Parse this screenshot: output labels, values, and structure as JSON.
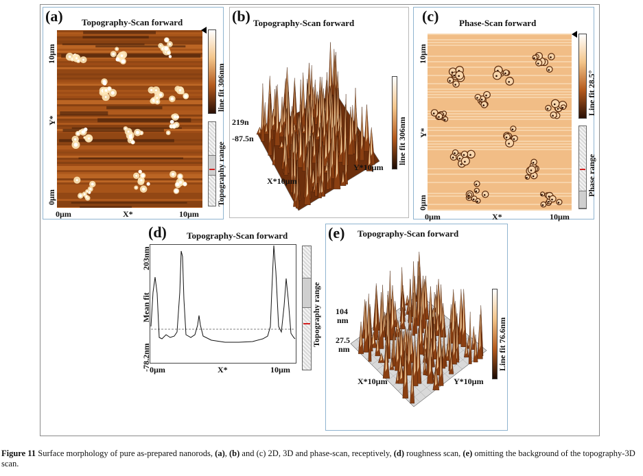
{
  "panels": {
    "a": {
      "label": "(a)",
      "title": "Topography-Scan forward",
      "y_top": "10µm",
      "y_axis": "Y*",
      "y_bottom": "0µm",
      "x_left": "0µm",
      "x_axis": "X*",
      "x_right": "10µm",
      "colorbar_label": "line fit 306nm",
      "range_label": "Topography range"
    },
    "b": {
      "label": "(b)",
      "title": "Topography-Scan forward",
      "z_top": "219n",
      "z_bottom": "-87.5n",
      "x_axis": "X*10µm",
      "y_axis": "Y*10µm",
      "colorbar_label": "line fit 306nm"
    },
    "c": {
      "label": "(c)",
      "title": "Phase-Scan forward",
      "y_top": "10µm",
      "y_axis": "Y*",
      "y_bottom": "0µm",
      "x_left": "0µm",
      "x_axis": "X*",
      "x_right": "10µm",
      "colorbar_label": "Line fit 28.5°",
      "range_label": "Phase range"
    },
    "d": {
      "label": "(d)",
      "title": "Topography-Scan forward",
      "y_top": "203nm",
      "y_axis": "Mean fit",
      "y_bottom": "-78.2nm",
      "x_left": "0µm",
      "x_axis": "X*",
      "x_right": "10µm",
      "range_label": "Topography range"
    },
    "e": {
      "label": "(e)",
      "title": "Topography-Scan forward",
      "z_top": "104",
      "z_top_unit": "nm",
      "z_bottom": "27.5",
      "z_bottom_unit": "nm",
      "x_axis": "X*10µm",
      "y_axis": "Y*10µm",
      "colorbar_label": "Line fit 76.6nm"
    }
  },
  "caption": {
    "lead": "Figure 11",
    "parts": [
      " Surface morphology of pure as-prepared nanorods, ",
      "(a)",
      ", ",
      "(b)",
      " and (c) 2D, 3D and phase-scan, receptively, ",
      "(d)",
      " roughness scan, ",
      "(e)",
      " omitting the background of the topography-3D scan."
    ]
  },
  "colors": {
    "afm_dark": "#3a1a08",
    "afm_mid": "#b25a1c",
    "afm_light": "#f7e3b8",
    "phase_base": "#f2bf87",
    "panel_border": "#8fb4d0"
  }
}
